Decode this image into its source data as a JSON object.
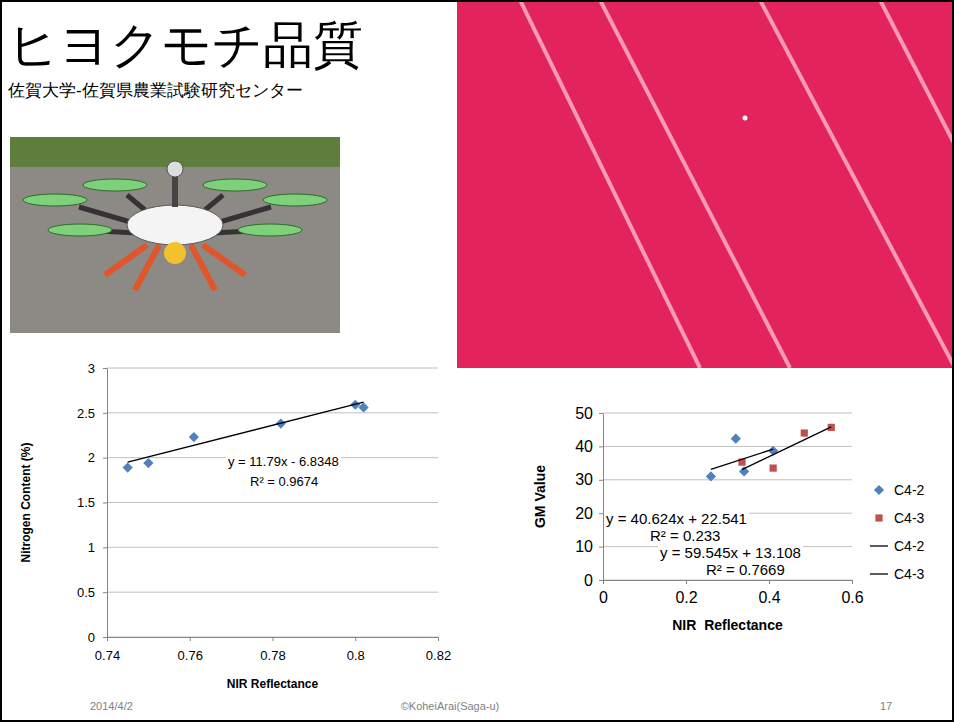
{
  "slide": {
    "title": "ヒヨクモチ品質",
    "subtitle": "佐賀大学-佐賀県農業試験研究センター",
    "date": "2014/4/2",
    "copyright": "©KoheiArai(Saga-u)",
    "page": 17
  },
  "chart_data": [
    {
      "type": "scatter",
      "x_label": "NIR Reflectance",
      "y_label": "Nitrogen Content (%)",
      "xlim": [
        0.74,
        0.82
      ],
      "xticks": [
        0.74,
        0.76,
        0.78,
        0.8,
        0.82
      ],
      "ylim": [
        0,
        3
      ],
      "yticks": [
        0,
        0.5,
        1,
        1.5,
        2,
        2.5,
        3
      ],
      "grid": true,
      "series": [
        {
          "type": "scatter",
          "marker": "diamond",
          "color": "#4f81bd",
          "x": [
            0.745,
            0.75,
            0.761,
            0.782,
            0.8,
            0.802
          ],
          "values": [
            1.89,
            1.94,
            2.23,
            2.38,
            2.59,
            2.56
          ]
        },
        {
          "type": "line",
          "line_style": "solid",
          "color": "#000000",
          "x": [
            0.745,
            0.802
          ],
          "values": [
            1.95,
            2.62
          ]
        }
      ],
      "annotations": [
        "y = 11.79x - 6.8348",
        "R² = 0.9674"
      ]
    },
    {
      "type": "scatter",
      "x_label": "NIR  Reflectance",
      "y_label": "GM Value",
      "xlim": [
        0,
        0.6
      ],
      "xticks": [
        0,
        0.2,
        0.4,
        0.6
      ],
      "ylim": [
        0,
        50
      ],
      "yticks": [
        0,
        10,
        20,
        30,
        40,
        50
      ],
      "grid": true,
      "legend": "right",
      "series": [
        {
          "name": "C4-2",
          "type": "scatter",
          "marker": "diamond",
          "color": "#4f81bd",
          "x": [
            0.26,
            0.32,
            0.34,
            0.41
          ],
          "values": [
            31,
            42.3,
            32.5,
            38.7
          ]
        },
        {
          "name": "C4-3",
          "type": "scatter",
          "marker": "square",
          "color": "#c0504d",
          "x": [
            0.335,
            0.41,
            0.485,
            0.55
          ],
          "values": [
            35.3,
            33.5,
            44,
            45.7
          ]
        },
        {
          "name": "C4-2",
          "type": "line",
          "line_style": "solid",
          "color": "#000000",
          "x": [
            0.26,
            0.41
          ],
          "values": [
            33.1,
            39.2
          ]
        },
        {
          "name": "C4-3",
          "type": "line",
          "line_style": "solid",
          "color": "#000000",
          "x": [
            0.335,
            0.55
          ],
          "values": [
            33.05,
            45.85
          ]
        }
      ],
      "annotations": [
        "y = 40.624x + 22.541",
        "R² = 0.233",
        "y = 59.545x + 13.108",
        "R² = 0.7669"
      ]
    }
  ]
}
